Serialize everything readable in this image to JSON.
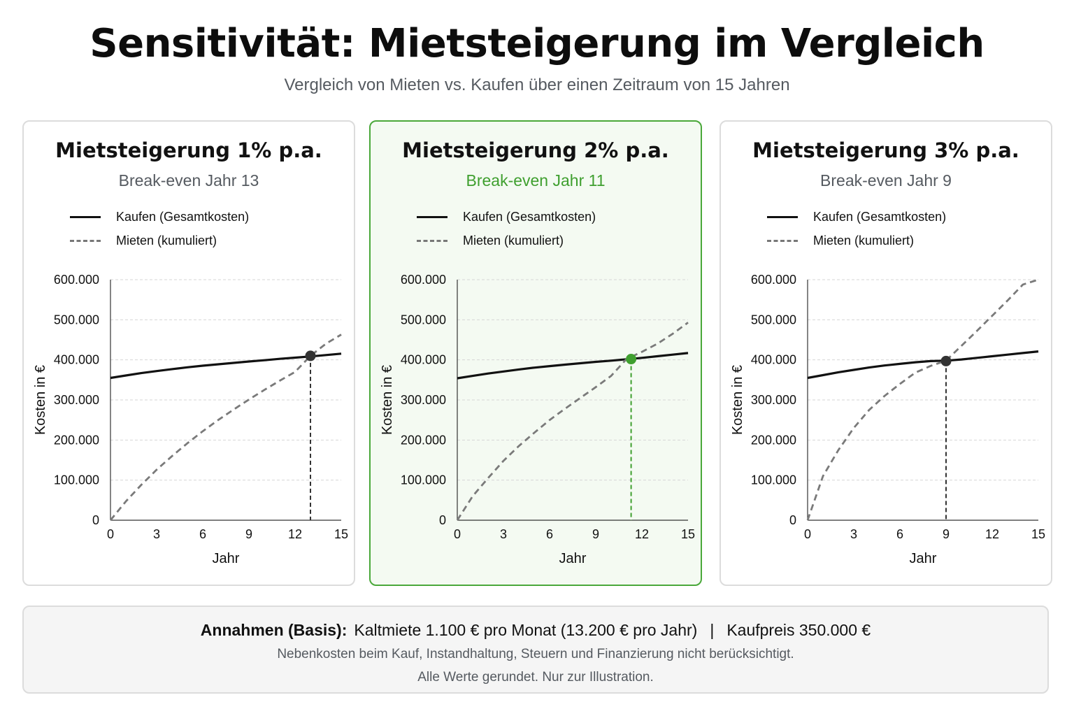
{
  "header": {
    "title": "Sensitivität: Mietsteigerung im Vergleich",
    "subtitle": "Vergleich von Mieten vs. Kaufen über einen Zeitraum von 15 Jahren"
  },
  "colors": {
    "buy_line": "#111111",
    "rent_line": "#7a7a7a",
    "highlight": "#3f9f2f",
    "marker_default": "#333333"
  },
  "panels": [
    {
      "title": "Mietsteigerung 1% p.a.",
      "subtitle": "Break-even Jahr 13",
      "legend": [
        "Kaufen (Gesamtkosten)",
        "Mieten (kumuliert)"
      ],
      "highlight": false
    },
    {
      "title": "Mietsteigerung 2% p.a.",
      "subtitle": "Break-even Jahr 11",
      "legend": [
        "Kaufen (Gesamtkosten)",
        "Mieten (kumuliert)"
      ],
      "highlight": true
    },
    {
      "title": "Mietsteigerung 3% p.a.",
      "subtitle": "Break-even Jahr 9",
      "legend": [
        "Kaufen (Gesamtkosten)",
        "Mieten (kumuliert)"
      ],
      "highlight": false
    }
  ],
  "chart_data": [
    {
      "type": "line",
      "title": "Mietsteigerung 1% p.a.",
      "xlabel": "Jahr",
      "ylabel": "Kosten in €",
      "xlim": [
        0,
        15
      ],
      "ylim": [
        0,
        600000
      ],
      "x_ticks": [
        0,
        3,
        6,
        9,
        12,
        15
      ],
      "y_ticks": [
        0,
        100000,
        200000,
        300000,
        400000,
        500000,
        600000
      ],
      "y_tick_labels": [
        "0",
        "100.000",
        "200.000",
        "300.000",
        "400.000",
        "500.000",
        "600.000"
      ],
      "grid": true,
      "legend_position": "top-left",
      "x": [
        0,
        1,
        2,
        3,
        4,
        5,
        6,
        7,
        8,
        9,
        10,
        11,
        12,
        13,
        14,
        15
      ],
      "series": [
        {
          "name": "Kaufen (Gesamtkosten)",
          "style": "solid",
          "values": [
            355000,
            361000,
            367000,
            372000,
            377000,
            381500,
            385500,
            389000,
            392500,
            396000,
            399000,
            402500,
            405500,
            408500,
            412000,
            415500
          ]
        },
        {
          "name": "Mieten (kumuliert)",
          "style": "dashed",
          "values": [
            0,
            47000,
            88000,
            126000,
            160000,
            192000,
            222000,
            250000,
            276000,
            301000,
            325000,
            348000,
            370000,
            410000,
            440000,
            463000
          ]
        }
      ],
      "break_even": {
        "x": 13,
        "y": 410000
      }
    },
    {
      "type": "line",
      "title": "Mietsteigerung 2% p.a.",
      "xlabel": "Jahr",
      "ylabel": "Kosten in €",
      "xlim": [
        0,
        15
      ],
      "ylim": [
        0,
        600000
      ],
      "x_ticks": [
        0,
        3,
        6,
        9,
        12,
        15
      ],
      "y_ticks": [
        0,
        100000,
        200000,
        300000,
        400000,
        500000,
        600000
      ],
      "y_tick_labels": [
        "0",
        "100.000",
        "200.000",
        "300.000",
        "400.000",
        "500.000",
        "600.000"
      ],
      "grid": true,
      "legend_position": "top-left",
      "x": [
        0,
        1,
        2,
        3,
        4,
        5,
        6,
        7,
        8,
        9,
        10,
        11,
        12,
        13,
        14,
        15
      ],
      "series": [
        {
          "name": "Kaufen (Gesamtkosten)",
          "style": "solid",
          "values": [
            354000,
            360000,
            366000,
            371000,
            376000,
            380500,
            384500,
            388000,
            391500,
            395000,
            398000,
            401500,
            405000,
            409000,
            413000,
            417000
          ]
        },
        {
          "name": "Mieten (kumuliert)",
          "style": "dashed",
          "values": [
            0,
            60000,
            105000,
            148000,
            185000,
            218000,
            250000,
            278000,
            305000,
            332000,
            360000,
            402000,
            420000,
            440000,
            465000,
            493000
          ]
        }
      ],
      "break_even": {
        "x": 11.3,
        "y": 402000
      }
    },
    {
      "type": "line",
      "title": "Mietsteigerung 3% p.a.",
      "xlabel": "Jahr",
      "ylabel": "Kosten in €",
      "xlim": [
        0,
        15
      ],
      "ylim": [
        0,
        600000
      ],
      "x_ticks": [
        0,
        3,
        6,
        9,
        12,
        15
      ],
      "y_ticks": [
        0,
        100000,
        200000,
        300000,
        400000,
        500000,
        600000
      ],
      "y_tick_labels": [
        "0",
        "100.000",
        "200.000",
        "300.000",
        "400.000",
        "500.000",
        "600.000"
      ],
      "grid": true,
      "legend_position": "top-left",
      "x": [
        0,
        1,
        2,
        3,
        4,
        5,
        6,
        7,
        8,
        9,
        10,
        11,
        12,
        13,
        14,
        15
      ],
      "series": [
        {
          "name": "Kaufen (Gesamtkosten)",
          "style": "solid",
          "values": [
            355000,
            362000,
            369000,
            375000,
            381000,
            386000,
            390000,
            394000,
            397000,
            398000,
            401000,
            405000,
            409000,
            413000,
            417000,
            421000
          ]
        },
        {
          "name": "Mieten (kumuliert)",
          "style": "dashed",
          "values": [
            0,
            110000,
            175000,
            230000,
            275000,
            310000,
            340000,
            368000,
            385000,
            398000,
            435000,
            472000,
            510000,
            548000,
            588000,
            600000
          ]
        }
      ],
      "break_even": {
        "x": 9,
        "y": 397000
      }
    }
  ],
  "footer": {
    "assumptions_label": "Annahmen (Basis):",
    "rent_text": "Kaltmiete 1.100 € pro Monat (13.200 € pro Jahr)",
    "separator": "|",
    "price_text": "Kaufpreis 350.000 €",
    "note1": "Nebenkosten beim Kauf, Instandhaltung, Steuern und Finanzierung nicht berücksichtigt.",
    "note2": "Alle Werte gerundet. Nur zur Illustration."
  }
}
